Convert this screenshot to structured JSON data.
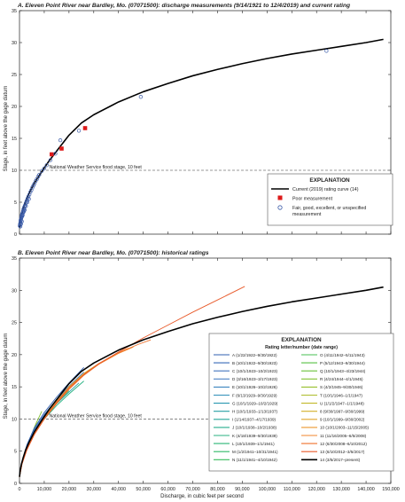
{
  "chart_data": [
    {
      "type": "scatter",
      "title": "A. Eleven Point River near Bardley, Mo. (07071500): discharge measurements (9/14/1921 to 12/4/2019) and current rating",
      "ylabel": "Stage, in feet above the gage datum",
      "xlim": [
        0,
        150000
      ],
      "ylim": [
        0,
        35
      ],
      "xticks": [
        0,
        10000,
        20000,
        30000,
        40000,
        50000,
        60000,
        70000,
        80000,
        90000,
        100000,
        110000,
        120000,
        130000,
        140000,
        150000
      ],
      "yticks": [
        0,
        5,
        10,
        15,
        20,
        25,
        30,
        35
      ],
      "flood_stage": {
        "value": 10,
        "label": "National Weather Service flood stage, 10 feet"
      },
      "legend": {
        "title": "EXPLANATION",
        "position": "lower-right",
        "entries": [
          {
            "label": "Current (2019) rating curve (14)",
            "color": "#000000",
            "marker": "line"
          },
          {
            "label": "Poor measurement",
            "color": "#dd1a1a",
            "marker": "square"
          },
          {
            "label": "Fair, good, excellent, or unspecified measurement",
            "label_lines": [
              "Fair, good, excellent, or unspecified",
              "measurement"
            ],
            "color": "#3b5ba8",
            "marker": "circle"
          }
        ]
      },
      "series": [
        {
          "name": "Current (2019) rating curve (14)",
          "kind": "line",
          "color": "#000000",
          "x": [
            0,
            300,
            800,
            1500,
            2500,
            4000,
            6000,
            9000,
            12000,
            16000,
            20000,
            25000,
            30000,
            40000,
            50000,
            60000,
            70000,
            80000,
            90000,
            100000,
            110000,
            120000,
            130000,
            140000,
            147000
          ],
          "y": [
            1.0,
            2.0,
            3.0,
            4.0,
            5.2,
            6.5,
            8.0,
            9.8,
            11.5,
            13.5,
            15.5,
            17.4,
            18.7,
            20.7,
            22.3,
            23.6,
            24.8,
            25.8,
            26.7,
            27.5,
            28.2,
            28.8,
            29.4,
            30.0,
            30.5
          ]
        },
        {
          "name": "Poor measurement",
          "kind": "marker",
          "marker": "square",
          "color": "#dd1a1a",
          "x": [
            13000,
            17000,
            26500
          ],
          "y": [
            12.5,
            13.4,
            16.6
          ]
        },
        {
          "name": "Fair, good, excellent, or unspecified measurement",
          "kind": "marker",
          "marker": "circle",
          "color": "#3b5ba8",
          "x": [
            100,
            200,
            300,
            400,
            500,
            600,
            700,
            800,
            900,
            1000,
            1200,
            1400,
            1600,
            1800,
            2000,
            2200,
            2500,
            2800,
            3000,
            3300,
            3600,
            4000,
            4400,
            4800,
            5200,
            5600,
            6000,
            6500,
            7000,
            7500,
            8000,
            9000,
            10000,
            11000,
            12500,
            14500,
            16500,
            24000,
            49000,
            124000,
            350,
            650,
            950,
            1300,
            1700,
            2100,
            2600,
            3200,
            3800,
            450,
            750,
            1100,
            1500,
            1900
          ],
          "y": [
            1.3,
            1.5,
            1.7,
            1.9,
            2.1,
            2.3,
            2.5,
            2.7,
            2.9,
            3.1,
            3.3,
            3.6,
            3.9,
            4.1,
            4.3,
            4.5,
            4.8,
            5.1,
            5.3,
            5.6,
            5.9,
            6.2,
            6.6,
            6.9,
            7.3,
            7.6,
            7.9,
            8.3,
            8.6,
            9.0,
            9.3,
            9.9,
            10.3,
            10.8,
            11.6,
            12.6,
            14.7,
            16.2,
            21.5,
            28.7,
            1.2,
            1.6,
            2.0,
            3.0,
            3.5,
            3.8,
            4.4,
            5.0,
            5.5,
            2.2,
            2.6,
            2.8,
            3.4,
            3.7
          ]
        }
      ]
    },
    {
      "type": "line",
      "title": "B. Eleven Point River near Bardley, Mo. (07071500): historical ratings",
      "xlabel": "Discharge, in cubic feet per second",
      "ylabel": "Stage, in feet above the gage datum",
      "xlim": [
        0,
        150000
      ],
      "ylim": [
        0,
        35
      ],
      "xticks": [
        0,
        10000,
        20000,
        30000,
        40000,
        50000,
        60000,
        70000,
        80000,
        90000,
        100000,
        110000,
        120000,
        130000,
        140000,
        150000
      ],
      "xticklabels": [
        "0",
        "10,000",
        "20,000",
        "30,000",
        "40,000",
        "50,000",
        "60,000",
        "70,000",
        "80,000",
        "90,000",
        "100,000",
        "110,000",
        "120,000",
        "130,000",
        "140,000",
        "150,000"
      ],
      "yticks": [
        0,
        5,
        10,
        15,
        20,
        25,
        30,
        35
      ],
      "flood_stage": {
        "value": 10,
        "label": "National Weather Service flood stage, 10 feet"
      },
      "legend": {
        "title": "EXPLANATION",
        "subtitle": "Rating letter/number (date range)",
        "position": "lower-right",
        "columns": [
          [
            {
              "label": "A (1/22/1922–9/30/1922)",
              "color": "#2f5fb0"
            },
            {
              "label": "B (10/1/1922–9/30/1923)",
              "color": "#3a6bb8"
            },
            {
              "label": "C (10/1/1923–10/2/1923)",
              "color": "#4577bf"
            },
            {
              "label": "D (3/16/1923–3/17/1923)",
              "color": "#4f83c6"
            },
            {
              "label": "E (10/1/1926–10/2/1926)",
              "color": "#3e86c0"
            },
            {
              "label": "F (6/13/1929–9/30/1929)",
              "color": "#2f8fb8"
            },
            {
              "label": "G (10/1/1929–10/2/1929)",
              "color": "#2a98b0"
            },
            {
              "label": "H (10/1/1933–1/13/1937)",
              "color": "#28a0a5"
            },
            {
              "label": "I (1/14/1937–4/17/1939)",
              "color": "#27a79a"
            },
            {
              "label": "J (10/1/1938–10/2/1938)",
              "color": "#27ad8e"
            },
            {
              "label": "K (4/18/1939–9/30/1939)",
              "color": "#28b282"
            },
            {
              "label": "L (10/1/1939–1/1/1941)",
              "color": "#2bb676"
            },
            {
              "label": "M (1/2/1941–10/31/1941)",
              "color": "#31ba69"
            },
            {
              "label": "N (11/1/1941–4/10/1942)",
              "color": "#38bd5d"
            }
          ],
          [
            {
              "label": "O (4/11/1942–5/11/1943)",
              "color": "#47bf50"
            },
            {
              "label": "P (5/12/1943–9/30/1944)",
              "color": "#58c145"
            },
            {
              "label": "Q (10/1/1943–4/23/1944)",
              "color": "#6cc23c"
            },
            {
              "label": "R (4/24/1944–4/1/1945)",
              "color": "#82c234"
            },
            {
              "label": "S (4/2/1945–9/30/1946)",
              "color": "#98c02e"
            },
            {
              "label": "T (10/1/1946–1/1/1947)",
              "color": "#adbd2b"
            },
            {
              "label": "U (1/1/2/1947–1/1/1948)",
              "color": "#c1b82a"
            },
            {
              "label": "8 (9/30/1997–9/30/1999)",
              "color": "#d3b02b"
            },
            {
              "label": "9 (10/1/1999–9/30/2002)",
              "color": "#e2a52c"
            },
            {
              "label": "10 (10/1/2003–11/15/2005)",
              "color": "#ec972d"
            },
            {
              "label": "11 (11/16/2005–6/5/2008)",
              "color": "#f0862d"
            },
            {
              "label": "12 (6/30/2008–6/10/2012)",
              "color": "#ef722c"
            },
            {
              "label": "13 (6/10/2012–3/5/2017)",
              "color": "#e85a2a"
            },
            {
              "label": "14 (3/5/2017–present)",
              "color": "#000000"
            }
          ]
        ]
      },
      "series": [
        {
          "name": "14 (3/5/2017–present)",
          "color": "#000000",
          "x": [
            0,
            300,
            800,
            1500,
            2500,
            4000,
            6000,
            9000,
            12000,
            16000,
            20000,
            25000,
            30000,
            40000,
            50000,
            60000,
            70000,
            80000,
            90000,
            100000,
            110000,
            120000,
            130000,
            140000,
            147000
          ],
          "y": [
            1.0,
            2.0,
            3.0,
            4.0,
            5.2,
            6.5,
            8.0,
            9.8,
            11.5,
            13.5,
            15.5,
            17.4,
            18.7,
            20.7,
            22.3,
            23.6,
            24.8,
            25.8,
            26.7,
            27.5,
            28.2,
            28.8,
            29.4,
            30.0,
            30.5
          ]
        },
        {
          "name": "13 (6/10/2012–3/5/2017)",
          "color": "#e85a2a",
          "x": [
            0,
            1000,
            3000,
            6000,
            10000,
            15000,
            20000,
            26000,
            32000,
            40000,
            50000,
            60000,
            70000,
            80000,
            91000
          ],
          "y": [
            1.0,
            3.0,
            5.2,
            7.6,
            10.0,
            12.6,
            14.8,
            16.9,
            18.6,
            20.4,
            22.6,
            24.6,
            26.6,
            28.5,
            30.6
          ]
        },
        {
          "name": "12 (6/30/2008–6/10/2012)",
          "color": "#ef722c",
          "x": [
            0,
            1000,
            3000,
            6000,
            10000,
            15000,
            20000,
            26000,
            32000,
            40000,
            48000,
            53000
          ],
          "y": [
            1.0,
            3.0,
            5.3,
            7.6,
            10.0,
            12.4,
            14.6,
            16.8,
            18.5,
            20.3,
            21.6,
            22.3
          ]
        },
        {
          "name": "11 (11/16/2005–6/5/2008)",
          "color": "#f0862d",
          "x": [
            0,
            1000,
            3000,
            6000,
            10000,
            15000,
            20000,
            26000,
            32000,
            40000,
            46000
          ],
          "y": [
            1.0,
            3.1,
            5.3,
            7.7,
            10.1,
            12.5,
            14.8,
            16.9,
            18.5,
            20.2,
            21.2
          ]
        },
        {
          "name": "10 (10/1/2003–11/15/2005)",
          "color": "#ec972d",
          "x": [
            0,
            1000,
            3000,
            6000,
            10000,
            15000,
            20000,
            26000,
            32000,
            40000,
            44000
          ],
          "y": [
            1.1,
            3.1,
            5.4,
            7.7,
            10.1,
            12.6,
            14.9,
            17.0,
            18.6,
            20.3,
            21.0
          ]
        },
        {
          "name": "9 (10/1/1999–9/30/2002)",
          "color": "#e2a52c",
          "x": [
            0,
            1000,
            3000,
            6000,
            10000,
            15000,
            20000,
            26000,
            32000,
            40000
          ],
          "y": [
            1.1,
            3.2,
            5.4,
            7.8,
            10.2,
            12.7,
            15.0,
            17.0,
            18.6,
            20.2
          ]
        },
        {
          "name": "8 (9/30/1997–9/30/1999)",
          "color": "#d3b02b",
          "x": [
            0,
            1000,
            3000,
            6000,
            10000,
            15000,
            20000,
            26000,
            32000,
            38000
          ],
          "y": [
            1.2,
            3.2,
            5.5,
            7.8,
            10.2,
            12.7,
            15.0,
            17.1,
            18.6,
            19.8
          ]
        },
        {
          "name": "A (1/22/1922–9/30/1922)",
          "color": "#2f5fb0",
          "x": [
            0,
            1000,
            3000,
            6000,
            10000,
            15000,
            20000,
            26000
          ],
          "y": [
            1.3,
            3.4,
            6.0,
            8.6,
            11.0,
            13.4,
            15.6,
            18.0
          ]
        },
        {
          "name": "C (10/1/1923–10/2/1923)",
          "color": "#4577bf",
          "x": [
            0,
            1000,
            3000,
            6000,
            10000,
            15000,
            20000,
            26000
          ],
          "y": [
            1.2,
            3.3,
            5.8,
            8.4,
            10.7,
            13.0,
            15.1,
            17.3
          ]
        },
        {
          "name": "E (10/1/1926–10/2/1926)",
          "color": "#3e86c0",
          "x": [
            0,
            1000,
            3000,
            6000,
            10000,
            15000,
            20000,
            24000
          ],
          "y": [
            1.2,
            3.3,
            5.7,
            8.2,
            10.6,
            12.9,
            15.0,
            16.5
          ]
        },
        {
          "name": "H (10/1/1933–1/13/1937)",
          "color": "#28a0a5",
          "x": [
            0,
            1000,
            3000,
            6000,
            10000,
            15000,
            20000,
            24000
          ],
          "y": [
            1.3,
            3.3,
            5.6,
            8.1,
            10.4,
            12.4,
            14.2,
            15.6
          ]
        },
        {
          "name": "K (4/18/1939–9/30/1939)",
          "color": "#28b282",
          "x": [
            0,
            1000,
            3000,
            6000,
            10000,
            15000,
            20000,
            26000
          ],
          "y": [
            1.1,
            3.1,
            5.4,
            7.7,
            10.0,
            12.1,
            13.9,
            15.9
          ]
        },
        {
          "name": "N (11/1/1941–4/10/1942)",
          "color": "#38bd5d",
          "x": [
            0,
            1000,
            3000,
            6000,
            10000,
            15000,
            20000
          ],
          "y": [
            1.1,
            3.1,
            5.4,
            7.8,
            10.0,
            12.4,
            14.4
          ]
        },
        {
          "name": "R (4/24/1944–4/1/1945)",
          "color": "#82c234",
          "x": [
            0,
            1000,
            3000,
            6000,
            9000
          ],
          "y": [
            1.1,
            3.2,
            5.7,
            8.7,
            11.2
          ]
        },
        {
          "name": "U (1/1/2/1947–1/1/1948)",
          "color": "#c1b82a",
          "x": [
            0,
            1000,
            3000,
            5000,
            7000
          ],
          "y": [
            1.0,
            3.1,
            5.5,
            7.6,
            9.6
          ]
        }
      ]
    }
  ]
}
